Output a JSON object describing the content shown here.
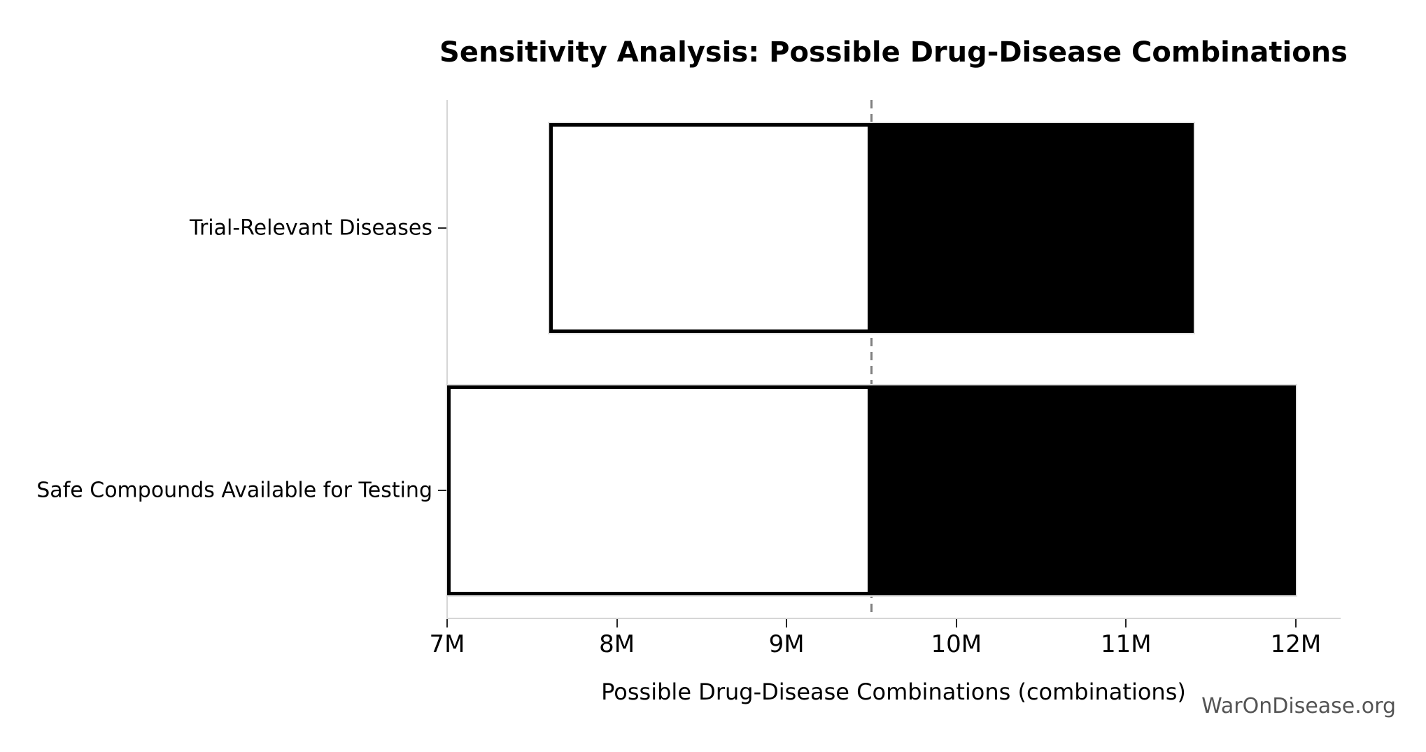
{
  "title": "Sensitivity Analysis: Possible Drug-Disease Combinations",
  "watermark": "WarOnDisease.org",
  "chart_data": {
    "type": "bar",
    "subtype": "tornado-sensitivity",
    "orientation": "horizontal",
    "title": "Sensitivity Analysis: Possible Drug-Disease Combinations",
    "xlabel": "Possible Drug-Disease Combinations (combinations)",
    "unit": "M",
    "baseline": 9.5,
    "categories": [
      "Trial-Relevant Diseases",
      "Safe Compounds Available for Testing"
    ],
    "bars": [
      {
        "category": "Trial-Relevant Diseases",
        "low": 7.6,
        "high": 11.4
      },
      {
        "category": "Safe Compounds Available for Testing",
        "low": 7.0,
        "high": 12.0
      }
    ],
    "x_ticks": [
      {
        "value": 7,
        "label": "7M"
      },
      {
        "value": 8,
        "label": "8M"
      },
      {
        "value": 9,
        "label": "9M"
      },
      {
        "value": 10,
        "label": "10M"
      },
      {
        "value": 11,
        "label": "11M"
      },
      {
        "value": 12,
        "label": "12M"
      }
    ],
    "xlim": [
      7,
      12.26
    ],
    "grid": false,
    "legend": null,
    "colors": {
      "low_segment_fill": "#ffffff",
      "high_segment_fill": "#000000",
      "bar_border": "#000000",
      "baseline_dash": "#808080",
      "spine": "#d6d6d6",
      "tick": "#262626",
      "text": "#000000",
      "watermark": "#545454"
    }
  }
}
